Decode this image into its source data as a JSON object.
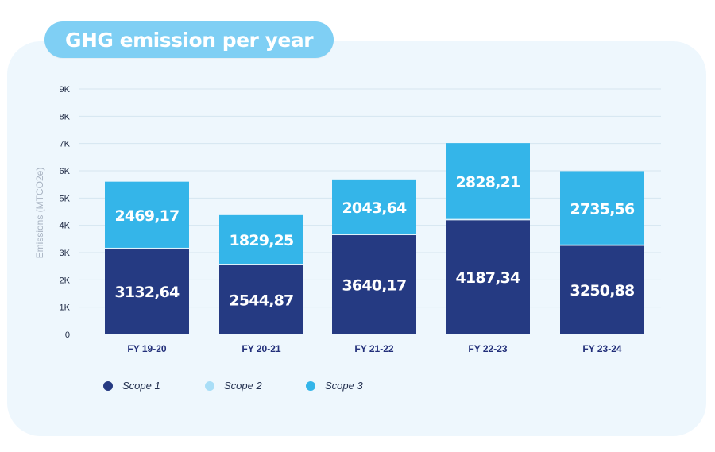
{
  "chart_data": {
    "type": "bar",
    "stacked": true,
    "title": "GHG emission per year",
    "ylabel": "Emissions (MTCO2e)",
    "xlabel": "",
    "ylim": [
      0,
      9000
    ],
    "yticks": [
      0,
      1000,
      2000,
      3000,
      4000,
      5000,
      6000,
      7000,
      8000,
      9000
    ],
    "ytick_labels": [
      "0",
      "1K",
      "2K",
      "3K",
      "4K",
      "5K",
      "6K",
      "7K",
      "8K",
      "9K"
    ],
    "categories": [
      "FY 19-20",
      "FY 20-21",
      "FY 21-22",
      "FY 22-23",
      "FY 23-24"
    ],
    "series": [
      {
        "name": "Scope 1",
        "color": "#253a82",
        "values": [
          3132.64,
          2544.87,
          3640.17,
          4187.34,
          3250.88
        ],
        "labels": [
          "3132,64",
          "2544,87",
          "3640,17",
          "4187,34",
          "3250,88"
        ]
      },
      {
        "name": "Scope 2",
        "color": "#a9def7",
        "values": [
          0,
          0,
          0,
          0,
          0
        ],
        "labels": []
      },
      {
        "name": "Scope 3",
        "color": "#34b5e9",
        "values": [
          2469.17,
          1829.25,
          2043.64,
          2828.21,
          2735.56
        ],
        "labels": [
          "2469,17",
          "1829,25",
          "2043,64",
          "2828,21",
          "2735,56"
        ]
      }
    ],
    "legend_position": "bottom-left",
    "grid": true
  }
}
